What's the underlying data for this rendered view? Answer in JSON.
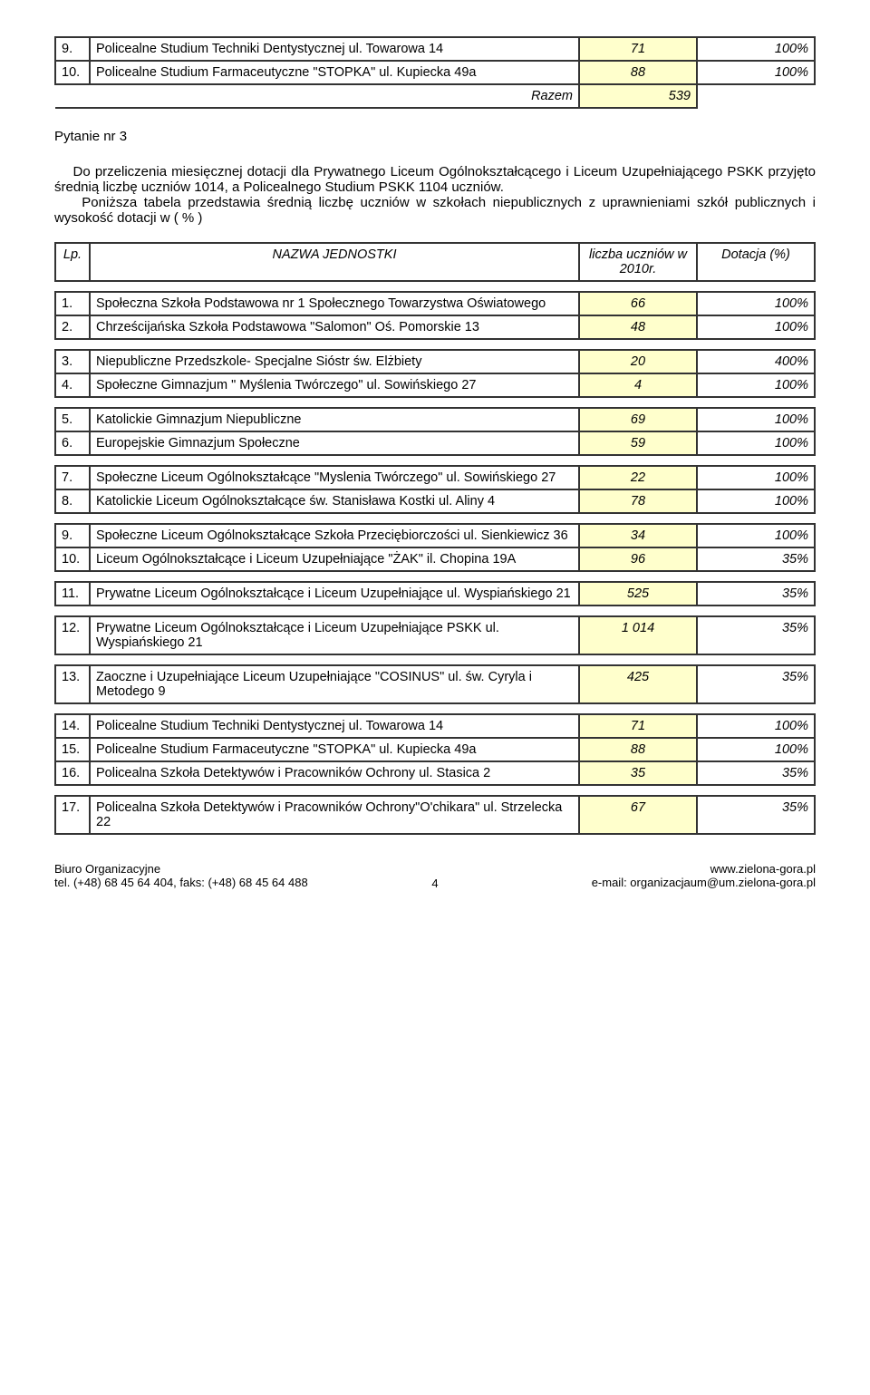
{
  "top_rows": [
    {
      "lp": "9.",
      "name": "Policealne Studium Techniki Dentystycznej ul. Towarowa 14",
      "num": "71",
      "pct": "100%"
    },
    {
      "lp": "10.",
      "name": "Policealne Studium Farmaceutyczne \"STOPKA\" ul. Kupiecka 49a",
      "num": "88",
      "pct": "100%"
    }
  ],
  "razem_label": "Razem",
  "razem_value": "539",
  "question_title": "Pytanie nr 3",
  "question_body": "Do przeliczenia miesięcznej dotacji dla  Prywatnego Liceum Ogólnokształcącego i Liceum Uzupełniającego PSKK przyjęto  średnią liczbę uczniów 1014, a Policealnego Studium PSKK  1104 uczniów.\nPoniższa tabela przedstawia średnią liczbę uczniów w szkołach niepublicznych z uprawnieniami szkół publicznych i wysokość dotacji w ( % )",
  "table_header": {
    "lp": "Lp.",
    "name": "NAZWA   JEDNOSTKI",
    "num": "liczba uczniów w 2010r.",
    "pct": "Dotacja  (%)"
  },
  "groups": [
    [
      {
        "lp": "1.",
        "name": "Społeczna Szkoła Podstawowa nr 1 Społecznego Towarzystwa Oświatowego",
        "num": "66",
        "pct": "100%"
      },
      {
        "lp": "2.",
        "name": "Chrześcijańska Szkoła Podstawowa \"Salomon\" Oś. Pomorskie 13",
        "num": "48",
        "pct": "100%"
      }
    ],
    [
      {
        "lp": "3.",
        "name": "Niepubliczne Przedszkole- Specjalne Sióstr św. Elżbiety",
        "num": "20",
        "pct": "400%"
      },
      {
        "lp": "4.",
        "name": "Społeczne Gimnazjum \" Myślenia Twórczego\" ul. Sowińskiego 27",
        "num": "4",
        "pct": "100%"
      }
    ],
    [
      {
        "lp": "5.",
        "name": "Katolickie Gimnazjum Niepubliczne",
        "num": "69",
        "pct": "100%"
      },
      {
        "lp": "6.",
        "name": "Europejskie Gimnazjum Społeczne",
        "num": "59",
        "pct": "100%"
      }
    ],
    [
      {
        "lp": "7.",
        "name": "Społeczne  Liceum Ogólnokształcące \"Myslenia Twórczego\" ul. Sowińskiego 27",
        "num": "22",
        "pct": "100%"
      },
      {
        "lp": "8.",
        "name": "Katolickie  Liceum Ogólnokształcące św. Stanisława Kostki ul. Aliny 4",
        "num": "78",
        "pct": "100%"
      }
    ],
    [
      {
        "lp": "9.",
        "name": "Społeczne Liceum Ogólnokształcące Szkoła Przeciębiorczości ul. Sienkiewicz 36",
        "num": "34",
        "pct": "100%"
      },
      {
        "lp": "10.",
        "name": "Liceum Ogólnokształcące i Liceum Uzupełniające \"ŻAK\" il. Chopina 19A",
        "num": "96",
        "pct": "35%"
      }
    ],
    [
      {
        "lp": "11.",
        "name": "Prywatne Liceum Ogólnokształcące i Liceum Uzupełniające ul. Wyspiańskiego 21",
        "num": "525",
        "pct": "35%"
      }
    ],
    [
      {
        "lp": "12.",
        "name": "Prywatne Liceum Ogólnokształcące i Liceum Uzupełniające PSKK ul. Wyspiańskiego 21",
        "num": "1 014",
        "pct": "35%"
      }
    ],
    [
      {
        "lp": "13.",
        "name": "Zaoczne i Uzupełniające Liceum Uzupełniające \"COSINUS\" ul. św. Cyryla i Metodego 9",
        "num": "425",
        "pct": "35%"
      }
    ],
    [
      {
        "lp": "14.",
        "name": "Policealne Studium Techniki Dentystycznej ul. Towarowa 14",
        "num": "71",
        "pct": "100%"
      },
      {
        "lp": "15.",
        "name": "Policealne Studium Farmaceutyczne \"STOPKA\" ul. Kupiecka 49a",
        "num": "88",
        "pct": "100%"
      },
      {
        "lp": "16.",
        "name": "Policealna Szkoła Detektywów i Pracowników Ochrony ul. Stasica 2",
        "num": "35",
        "pct": "35%"
      }
    ],
    [
      {
        "lp": "17.",
        "name": "Policealna Szkoła Detektywów i Pracowników Ochrony\"O'chikara\" ul. Strzelecka 22",
        "num": "67",
        "pct": "35%"
      }
    ]
  ],
  "footer": {
    "left1": "Biuro Organizacyjne",
    "left2": "tel. (+48) 68 45 64 404, faks: (+48) 68 45 64 488",
    "right1": "www.zielona-gora.pl",
    "right2": "e-mail: organizacjaum@um.zielona-gora.pl",
    "page": "4"
  },
  "colors": {
    "highlight_bg": "#ffffcc",
    "border": "#333333",
    "text": "#000000",
    "page_bg": "#ffffff"
  }
}
